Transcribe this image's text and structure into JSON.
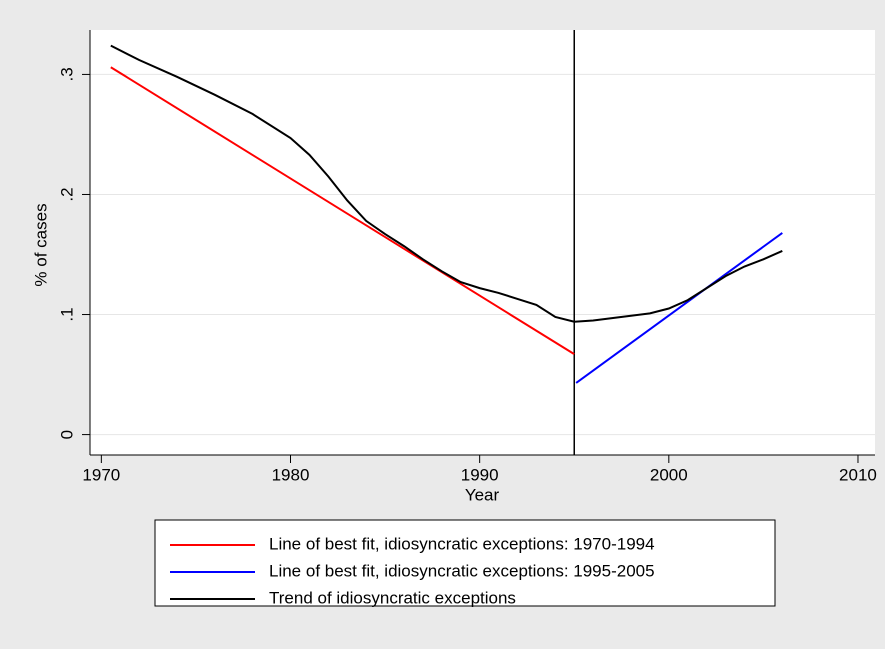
{
  "chart_data": {
    "type": "line",
    "x_label": "Year",
    "y_label": "% of cases",
    "xlim": [
      1969.4,
      2010.9
    ],
    "ylim": [
      -0.017,
      0.337
    ],
    "xticks": [
      1970,
      1980,
      1990,
      2000,
      2010
    ],
    "yticks": [
      0,
      {
        "value": 0.1,
        "label": ".1"
      },
      {
        "value": 0.2,
        "label": ".2"
      },
      {
        "value": 0.3,
        "label": ".3"
      }
    ],
    "grid": true,
    "vline": 1995,
    "series": [
      {
        "name": "Line of best fit, idiosyncratic exceptions: 1970-1994",
        "color": "#ff0000",
        "x": [
          1970.5,
          1995
        ],
        "values": [
          0.306,
          0.067
        ]
      },
      {
        "name": "Line of best fit, idiosyncratic exceptions: 1995-2005",
        "color": "#0000ff",
        "x": [
          1995.1,
          2006
        ],
        "values": [
          0.043,
          0.168
        ]
      },
      {
        "name": "Trend of idiosyncratic exceptions",
        "color": "#000000",
        "x": [
          1970.5,
          1972,
          1974,
          1976,
          1978,
          1980,
          1981,
          1982,
          1983,
          1984,
          1985,
          1986,
          1987,
          1988,
          1989,
          1990,
          1991,
          1992,
          1993,
          1994,
          1995,
          1996,
          1997,
          1998,
          1999,
          2000,
          2001,
          2002,
          2003,
          2004,
          2005,
          2006
        ],
        "values": [
          0.324,
          0.312,
          0.298,
          0.283,
          0.267,
          0.247,
          0.233,
          0.215,
          0.195,
          0.178,
          0.167,
          0.157,
          0.146,
          0.136,
          0.127,
          0.122,
          0.118,
          0.113,
          0.108,
          0.098,
          0.094,
          0.095,
          0.097,
          0.099,
          0.101,
          0.105,
          0.112,
          0.122,
          0.132,
          0.14,
          0.146,
          0.153
        ]
      }
    ]
  }
}
